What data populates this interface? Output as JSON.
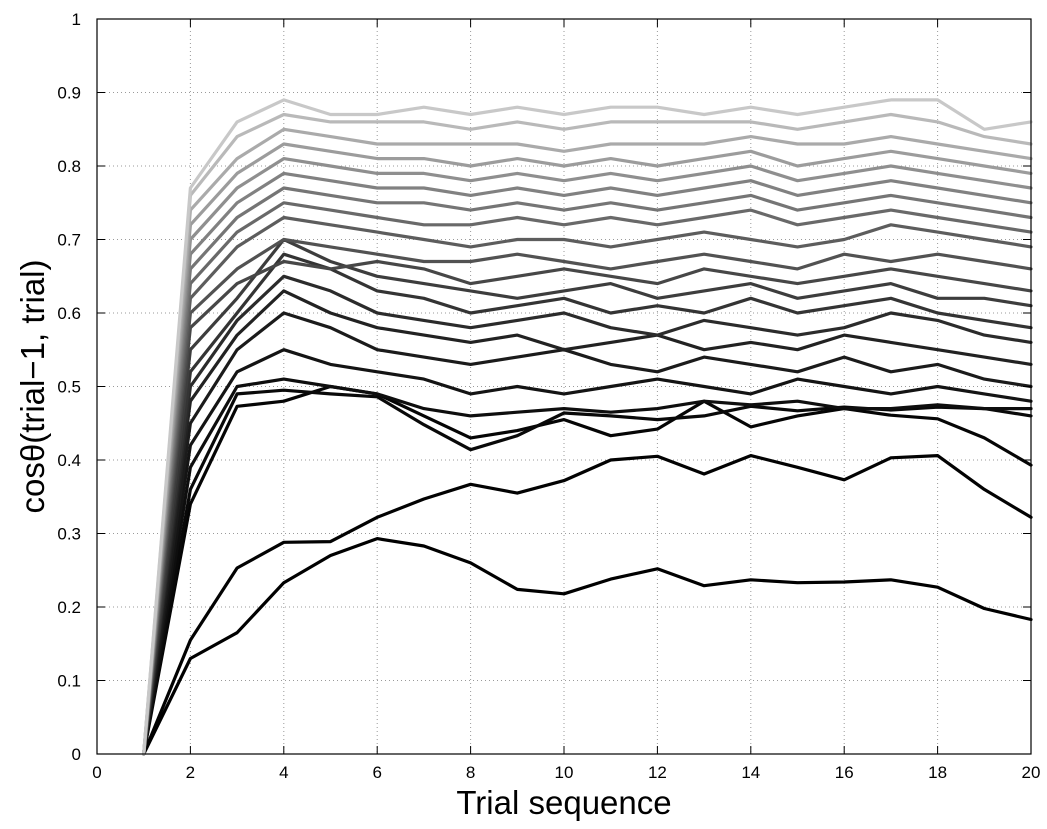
{
  "chart_data": {
    "type": "line",
    "title": "",
    "xlabel": "Trial sequence",
    "ylabel": "cosθ(trial−1, trial)",
    "xlim": [
      0,
      20
    ],
    "ylim": [
      0,
      1
    ],
    "xticks": [
      0,
      2,
      4,
      6,
      8,
      10,
      12,
      14,
      16,
      18,
      20
    ],
    "yticks": [
      0,
      0.1,
      0.2,
      0.3,
      0.4,
      0.5,
      0.6,
      0.7,
      0.8,
      0.9,
      1
    ],
    "ytick_labels": [
      "0",
      "0.1",
      "0.2",
      "0.3",
      "0.4",
      "0.5",
      "0.6",
      "0.7",
      "0.8",
      "0.9",
      "1"
    ],
    "grid": true,
    "grid_style": "dotted",
    "legend": "none",
    "line_color_range": [
      "#000000",
      "#c8c8c8"
    ],
    "x": [
      1,
      2,
      3,
      4,
      5,
      6,
      7,
      8,
      9,
      10,
      11,
      12,
      13,
      14,
      15,
      16,
      17,
      18,
      19,
      20
    ],
    "series": [
      {
        "values": [
          0,
          0.13,
          0.165,
          0.233,
          0.27,
          0.293,
          0.283,
          0.26,
          0.224,
          0.218,
          0.238,
          0.252,
          0.229,
          0.237,
          0.233,
          0.234,
          0.237,
          0.227,
          0.198,
          0.183
        ]
      },
      {
        "values": [
          0,
          0.155,
          0.253,
          0.288,
          0.289,
          0.322,
          0.347,
          0.367,
          0.355,
          0.372,
          0.4,
          0.405,
          0.381,
          0.406,
          0.39,
          0.373,
          0.403,
          0.406,
          0.36,
          0.322
        ]
      },
      {
        "values": [
          0,
          0.34,
          0.473,
          0.48,
          0.5,
          0.49,
          0.46,
          0.43,
          0.44,
          0.455,
          0.433,
          0.442,
          0.48,
          0.445,
          0.46,
          0.47,
          0.461,
          0.456,
          0.43,
          0.393
        ]
      },
      {
        "values": [
          0,
          0.36,
          0.49,
          0.495,
          0.49,
          0.486,
          0.448,
          0.414,
          0.433,
          0.464,
          0.46,
          0.455,
          0.46,
          0.473,
          0.467,
          0.472,
          0.468,
          0.472,
          0.47,
          0.46
        ]
      },
      {
        "values": [
          0,
          0.39,
          0.5,
          0.51,
          0.5,
          0.49,
          0.47,
          0.46,
          0.465,
          0.47,
          0.465,
          0.47,
          0.48,
          0.475,
          0.48,
          0.47,
          0.47,
          0.475,
          0.47,
          0.47
        ]
      },
      {
        "values": [
          0,
          0.42,
          0.52,
          0.55,
          0.53,
          0.52,
          0.51,
          0.49,
          0.5,
          0.49,
          0.5,
          0.51,
          0.5,
          0.49,
          0.51,
          0.5,
          0.49,
          0.5,
          0.49,
          0.48
        ]
      },
      {
        "values": [
          0,
          0.45,
          0.55,
          0.6,
          0.58,
          0.55,
          0.54,
          0.53,
          0.54,
          0.55,
          0.53,
          0.52,
          0.54,
          0.53,
          0.52,
          0.54,
          0.52,
          0.53,
          0.51,
          0.5
        ]
      },
      {
        "values": [
          0,
          0.48,
          0.57,
          0.63,
          0.6,
          0.58,
          0.57,
          0.56,
          0.57,
          0.55,
          0.56,
          0.57,
          0.55,
          0.56,
          0.55,
          0.57,
          0.56,
          0.55,
          0.54,
          0.53
        ]
      },
      {
        "values": [
          0,
          0.5,
          0.59,
          0.65,
          0.63,
          0.6,
          0.59,
          0.58,
          0.59,
          0.6,
          0.58,
          0.57,
          0.59,
          0.58,
          0.57,
          0.58,
          0.6,
          0.59,
          0.57,
          0.56
        ]
      },
      {
        "values": [
          0,
          0.52,
          0.6,
          0.68,
          0.66,
          0.63,
          0.62,
          0.6,
          0.61,
          0.62,
          0.6,
          0.61,
          0.6,
          0.62,
          0.6,
          0.61,
          0.62,
          0.6,
          0.59,
          0.58
        ]
      },
      {
        "values": [
          0,
          0.55,
          0.62,
          0.7,
          0.67,
          0.65,
          0.64,
          0.63,
          0.62,
          0.63,
          0.64,
          0.62,
          0.63,
          0.64,
          0.62,
          0.63,
          0.64,
          0.62,
          0.62,
          0.61
        ]
      },
      {
        "values": [
          0,
          0.58,
          0.64,
          0.67,
          0.66,
          0.67,
          0.66,
          0.64,
          0.65,
          0.66,
          0.65,
          0.64,
          0.66,
          0.65,
          0.64,
          0.65,
          0.66,
          0.65,
          0.64,
          0.63
        ]
      },
      {
        "values": [
          0,
          0.6,
          0.66,
          0.7,
          0.69,
          0.68,
          0.67,
          0.67,
          0.68,
          0.67,
          0.66,
          0.67,
          0.68,
          0.67,
          0.66,
          0.68,
          0.67,
          0.68,
          0.67,
          0.66
        ]
      },
      {
        "values": [
          0,
          0.62,
          0.69,
          0.73,
          0.72,
          0.71,
          0.7,
          0.69,
          0.7,
          0.7,
          0.69,
          0.7,
          0.71,
          0.7,
          0.69,
          0.7,
          0.72,
          0.71,
          0.7,
          0.69
        ]
      },
      {
        "values": [
          0,
          0.64,
          0.71,
          0.75,
          0.74,
          0.73,
          0.72,
          0.72,
          0.73,
          0.72,
          0.73,
          0.72,
          0.73,
          0.74,
          0.72,
          0.73,
          0.74,
          0.73,
          0.72,
          0.71
        ]
      },
      {
        "values": [
          0,
          0.66,
          0.73,
          0.77,
          0.76,
          0.75,
          0.75,
          0.74,
          0.75,
          0.74,
          0.75,
          0.74,
          0.75,
          0.76,
          0.74,
          0.75,
          0.76,
          0.75,
          0.74,
          0.73
        ]
      },
      {
        "values": [
          0,
          0.68,
          0.75,
          0.79,
          0.78,
          0.77,
          0.77,
          0.76,
          0.77,
          0.76,
          0.77,
          0.76,
          0.77,
          0.78,
          0.76,
          0.77,
          0.78,
          0.77,
          0.76,
          0.75
        ]
      },
      {
        "values": [
          0,
          0.7,
          0.77,
          0.81,
          0.8,
          0.79,
          0.79,
          0.78,
          0.79,
          0.78,
          0.79,
          0.78,
          0.79,
          0.8,
          0.78,
          0.79,
          0.8,
          0.79,
          0.78,
          0.77
        ]
      },
      {
        "values": [
          0,
          0.72,
          0.79,
          0.83,
          0.82,
          0.81,
          0.81,
          0.8,
          0.81,
          0.8,
          0.81,
          0.8,
          0.81,
          0.82,
          0.8,
          0.81,
          0.82,
          0.81,
          0.8,
          0.79
        ]
      },
      {
        "values": [
          0,
          0.74,
          0.81,
          0.85,
          0.84,
          0.83,
          0.83,
          0.83,
          0.83,
          0.82,
          0.83,
          0.83,
          0.83,
          0.84,
          0.83,
          0.83,
          0.84,
          0.83,
          0.82,
          0.81
        ]
      },
      {
        "values": [
          0,
          0.76,
          0.84,
          0.87,
          0.86,
          0.86,
          0.86,
          0.85,
          0.86,
          0.85,
          0.86,
          0.86,
          0.86,
          0.86,
          0.85,
          0.86,
          0.87,
          0.86,
          0.84,
          0.83
        ]
      },
      {
        "values": [
          0,
          0.77,
          0.86,
          0.89,
          0.87,
          0.87,
          0.88,
          0.87,
          0.88,
          0.87,
          0.88,
          0.88,
          0.87,
          0.88,
          0.87,
          0.88,
          0.89,
          0.89,
          0.85,
          0.86
        ]
      }
    ]
  }
}
